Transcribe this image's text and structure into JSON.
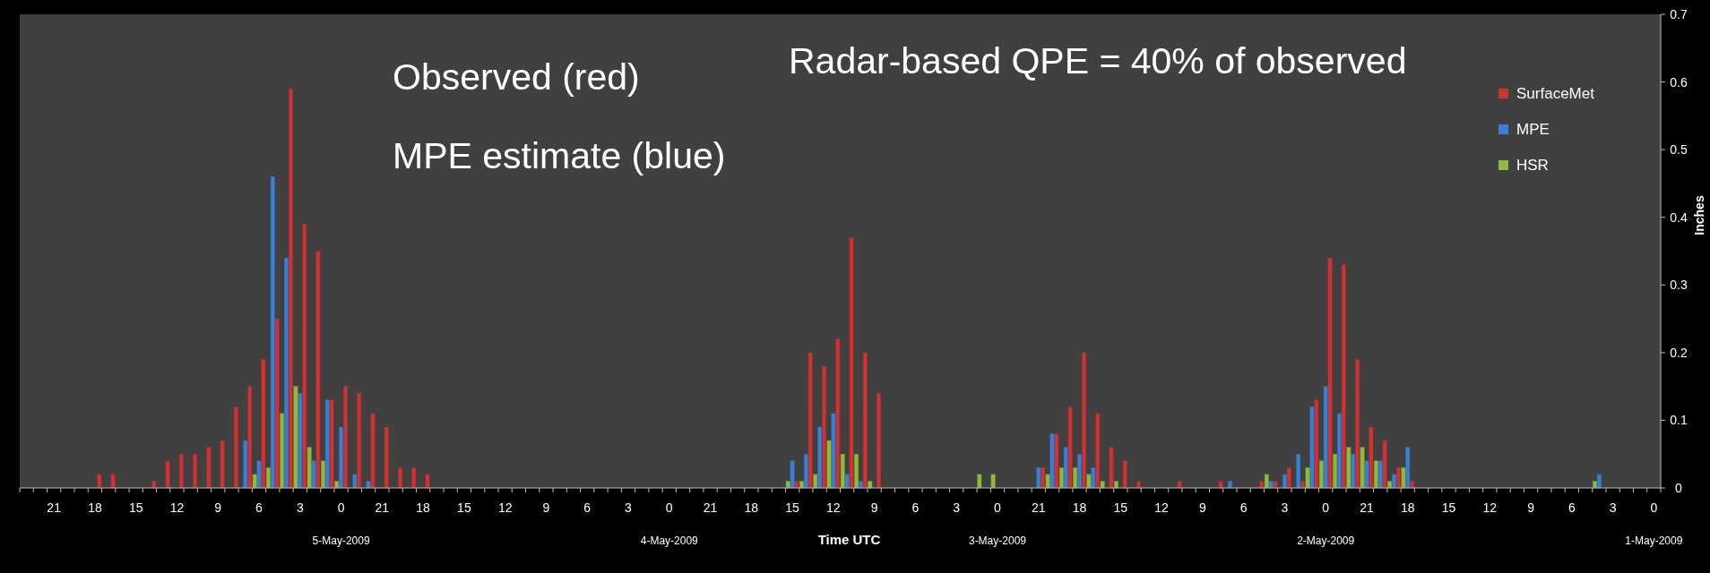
{
  "chart_data": {
    "type": "bar",
    "xlabel": "Time UTC",
    "ylabel": "Inches",
    "ylim": [
      0,
      0.7
    ],
    "yticks": [
      0,
      0.1,
      0.2,
      0.3,
      0.4,
      0.5,
      0.6,
      0.7
    ],
    "grid": false,
    "legend": "top right",
    "annotations": [
      "Observed (red)",
      "MPE estimate (blue)",
      "Radar-based QPE = 40% of observed"
    ],
    "categories": [
      null,
      null,
      "21",
      null,
      null,
      "18",
      null,
      null,
      "15",
      null,
      null,
      "12",
      null,
      null,
      "9",
      null,
      null,
      "6",
      null,
      null,
      "3",
      null,
      null,
      "0\n5-May-2009",
      null,
      null,
      "21",
      null,
      null,
      "18",
      null,
      null,
      "15",
      null,
      null,
      "12",
      null,
      null,
      "9",
      null,
      null,
      "6",
      null,
      null,
      "3",
      null,
      null,
      "0\n4-May-2009",
      null,
      null,
      "21",
      null,
      null,
      "18",
      null,
      null,
      "15",
      null,
      null,
      "12",
      null,
      null,
      "9",
      null,
      null,
      "6",
      null,
      null,
      "3",
      null,
      null,
      "0\n3-May-2009",
      null,
      null,
      "21",
      null,
      null,
      "18",
      null,
      null,
      "15",
      null,
      null,
      "12",
      null,
      null,
      "9",
      null,
      null,
      "6",
      null,
      null,
      "3",
      null,
      null,
      "0\n2-May-2009",
      null,
      null,
      "21",
      null,
      null,
      "18",
      null,
      null,
      "15",
      null,
      null,
      "12",
      null,
      null,
      "9",
      null,
      null,
      "6",
      null,
      null,
      "3",
      null,
      null,
      "0\n1-May-2009"
    ],
    "series": [
      {
        "name": "SurfaceMet",
        "color": "#cc3333",
        "values": [
          null,
          null,
          null,
          null,
          null,
          0.02,
          0.02,
          null,
          null,
          0.01,
          0.04,
          0.05,
          0.05,
          0.06,
          0.07,
          0.12,
          0.15,
          0.19,
          0.25,
          0.59,
          0.39,
          0.35,
          0.13,
          0.15,
          0.14,
          0.11,
          0.09,
          0.03,
          0.03,
          0.02,
          null,
          null,
          null,
          null,
          null,
          null,
          null,
          null,
          null,
          null,
          null,
          null,
          null,
          null,
          null,
          null,
          null,
          null,
          null,
          null,
          null,
          null,
          null,
          null,
          null,
          null,
          0.01,
          0.2,
          0.18,
          0.22,
          0.37,
          0.2,
          0.14,
          null,
          null,
          null,
          null,
          null,
          null,
          null,
          null,
          null,
          null,
          null,
          0.03,
          0.08,
          0.12,
          0.2,
          0.11,
          0.06,
          0.04,
          0.01,
          null,
          null,
          0.01,
          null,
          null,
          0.01,
          null,
          null,
          0.01,
          0.01,
          0.03,
          0.01,
          0.13,
          0.34,
          0.33,
          0.19,
          0.09,
          0.07,
          0.03,
          0.01,
          null,
          null,
          null,
          null,
          null,
          null,
          null,
          null,
          null,
          null,
          null,
          null,
          null,
          null,
          null,
          null,
          null,
          null
        ]
      },
      {
        "name": "MPE",
        "color": "#3a7fd4",
        "values": [
          null,
          null,
          null,
          null,
          null,
          null,
          null,
          null,
          null,
          null,
          null,
          null,
          null,
          null,
          null,
          null,
          0.07,
          0.04,
          0.46,
          0.34,
          0.14,
          0.04,
          0.13,
          0.09,
          0.02,
          0.01,
          null,
          null,
          null,
          null,
          null,
          null,
          null,
          null,
          null,
          null,
          null,
          null,
          null,
          null,
          null,
          null,
          null,
          null,
          null,
          null,
          null,
          null,
          null,
          null,
          null,
          null,
          null,
          null,
          null,
          null,
          0.04,
          0.05,
          0.09,
          0.11,
          0.02,
          0.01,
          null,
          null,
          null,
          null,
          null,
          null,
          null,
          null,
          null,
          null,
          null,
          null,
          0.03,
          0.08,
          0.06,
          0.05,
          0.03,
          null,
          null,
          null,
          null,
          null,
          null,
          null,
          null,
          null,
          0.01,
          null,
          null,
          0.01,
          0.02,
          0.05,
          0.12,
          0.15,
          0.11,
          0.05,
          0.04,
          0.04,
          0.02,
          0.06,
          null,
          null,
          null,
          null,
          null,
          null,
          null,
          null,
          null,
          null,
          null,
          null,
          null,
          0.02,
          null,
          null,
          null,
          null
        ]
      },
      {
        "name": "HSR",
        "color": "#8dbb3a",
        "values": [
          null,
          null,
          null,
          null,
          null,
          null,
          null,
          null,
          null,
          null,
          null,
          null,
          null,
          null,
          null,
          null,
          null,
          0.02,
          0.03,
          0.11,
          0.15,
          0.06,
          0.04,
          0.01,
          null,
          null,
          null,
          null,
          null,
          null,
          null,
          null,
          null,
          null,
          null,
          null,
          null,
          null,
          null,
          null,
          null,
          null,
          null,
          null,
          null,
          null,
          null,
          null,
          null,
          null,
          null,
          null,
          null,
          null,
          null,
          null,
          0.01,
          0.01,
          0.02,
          0.07,
          0.05,
          0.05,
          0.01,
          null,
          null,
          null,
          null,
          null,
          null,
          null,
          0.02,
          0.02,
          null,
          null,
          null,
          0.02,
          0.03,
          0.03,
          0.02,
          0.01,
          0.01,
          null,
          null,
          null,
          null,
          null,
          null,
          null,
          null,
          null,
          null,
          0.02,
          null,
          null,
          0.03,
          0.04,
          0.05,
          0.06,
          0.06,
          0.04,
          0.01,
          0.03,
          null,
          null,
          null,
          null,
          null,
          null,
          null,
          null,
          null,
          null,
          null,
          null,
          null,
          0.01,
          null,
          null,
          null,
          null
        ]
      }
    ]
  }
}
